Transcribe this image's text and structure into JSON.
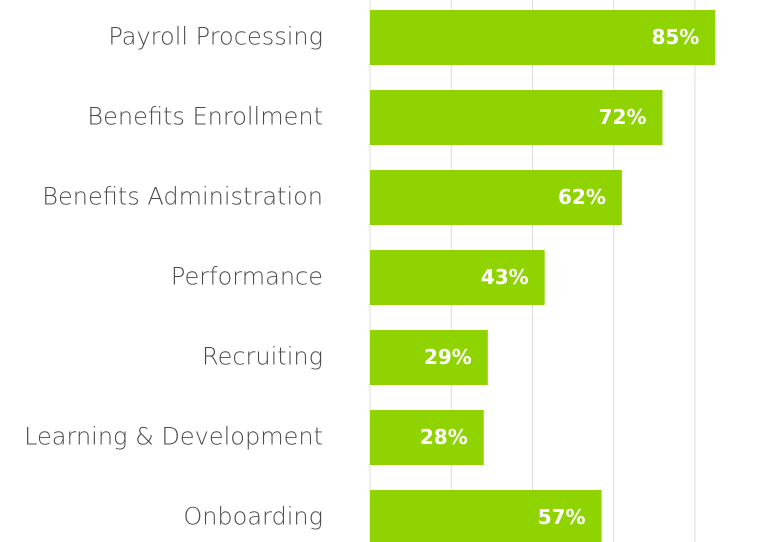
{
  "chart_data": {
    "type": "bar",
    "orientation": "horizontal",
    "categories": [
      "Payroll Processing",
      "Benefits Enrollment",
      "Benefits Administration",
      "Performance",
      "Recruiting",
      "Learning & Development",
      "Onboarding"
    ],
    "values": [
      85,
      72,
      62,
      43,
      29,
      28,
      57
    ],
    "value_labels": [
      "85%",
      "72%",
      "62%",
      "43%",
      "29%",
      "28%",
      "57%"
    ],
    "color": "#8fd400",
    "xlim": [
      0,
      96
    ],
    "xticks": [
      0,
      20,
      40,
      60,
      80
    ],
    "grid": true
  }
}
